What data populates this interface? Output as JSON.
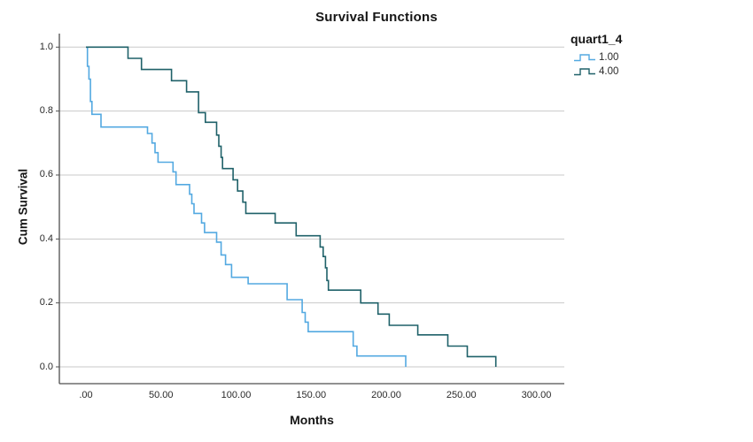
{
  "title": "Survival Functions",
  "y_axis_label": "Cum Survival",
  "x_axis_label": "Months",
  "legend": {
    "title": "quart1_4",
    "entries": [
      {
        "label": "1.00",
        "color": "#53A9E1"
      },
      {
        "label": "4.00",
        "color": "#1F6169"
      }
    ]
  },
  "chart_data": {
    "type": "line",
    "subtype": "kaplan-meier-step",
    "title": "Survival Functions",
    "xlabel": "Months",
    "ylabel": "Cum Survival",
    "xlim": [
      0,
      300
    ],
    "ylim": [
      0.0,
      1.0
    ],
    "grid": "horizontal",
    "grid_color": "#C9C9C9",
    "axis_color": "#4F4F4F",
    "legend_position": "top-right",
    "legend_title": "quart1_4",
    "x_ticks": [
      {
        "label": ".00",
        "value": 0
      },
      {
        "label": "50.00",
        "value": 50
      },
      {
        "label": "100.00",
        "value": 100
      },
      {
        "label": "150.00",
        "value": 150
      },
      {
        "label": "200.00",
        "value": 200
      },
      {
        "label": "250.00",
        "value": 250
      },
      {
        "label": "300.00",
        "value": 300
      }
    ],
    "y_ticks": [
      {
        "label": "0.0",
        "value": 0.0
      },
      {
        "label": "0.2",
        "value": 0.2
      },
      {
        "label": "0.4",
        "value": 0.4
      },
      {
        "label": "0.6",
        "value": 0.6
      },
      {
        "label": "0.8",
        "value": 0.8
      },
      {
        "label": "1.0",
        "value": 1.0
      }
    ],
    "series": [
      {
        "name": "1.00",
        "color": "#53A9E1",
        "points": [
          [
            0,
            1.0
          ],
          [
            1,
            0.94
          ],
          [
            2,
            0.9
          ],
          [
            3,
            0.83
          ],
          [
            4,
            0.79
          ],
          [
            10,
            0.75
          ],
          [
            41,
            0.73
          ],
          [
            44,
            0.7
          ],
          [
            46,
            0.67
          ],
          [
            48,
            0.64
          ],
          [
            58,
            0.61
          ],
          [
            60,
            0.57
          ],
          [
            69,
            0.54
          ],
          [
            70.5,
            0.51
          ],
          [
            72,
            0.48
          ],
          [
            77,
            0.45
          ],
          [
            79,
            0.42
          ],
          [
            87,
            0.39
          ],
          [
            90,
            0.35
          ],
          [
            93,
            0.32
          ],
          [
            97,
            0.28
          ],
          [
            108,
            0.26
          ],
          [
            134,
            0.21
          ],
          [
            144,
            0.17
          ],
          [
            146,
            0.14
          ],
          [
            148,
            0.11
          ],
          [
            178,
            0.065
          ],
          [
            180.5,
            0.034
          ],
          [
            213,
            0.0
          ]
        ]
      },
      {
        "name": "4.00",
        "color": "#1F6169",
        "points": [
          [
            0,
            1.0
          ],
          [
            28,
            0.965
          ],
          [
            37,
            0.93
          ],
          [
            57,
            0.895
          ],
          [
            67,
            0.86
          ],
          [
            75,
            0.795
          ],
          [
            79.5,
            0.765
          ],
          [
            87,
            0.725
          ],
          [
            88.5,
            0.69
          ],
          [
            90,
            0.655
          ],
          [
            91,
            0.62
          ],
          [
            98,
            0.585
          ],
          [
            101,
            0.55
          ],
          [
            104.5,
            0.515
          ],
          [
            106.5,
            0.48
          ],
          [
            126,
            0.45
          ],
          [
            140,
            0.41
          ],
          [
            156,
            0.375
          ],
          [
            158,
            0.345
          ],
          [
            159.5,
            0.31
          ],
          [
            160.5,
            0.27
          ],
          [
            161.5,
            0.24
          ],
          [
            183,
            0.2
          ],
          [
            194.5,
            0.165
          ],
          [
            202,
            0.13
          ],
          [
            221,
            0.1
          ],
          [
            241,
            0.065
          ],
          [
            254,
            0.032
          ],
          [
            273,
            0.0
          ]
        ]
      }
    ]
  }
}
